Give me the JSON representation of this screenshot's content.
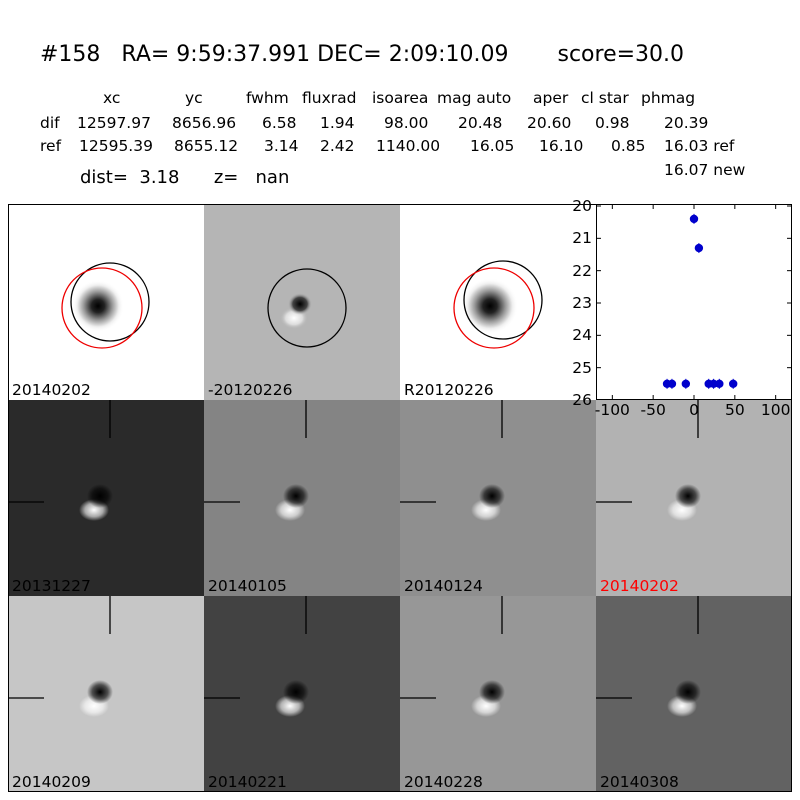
{
  "title": {
    "id": "#158",
    "ra": "RA= 9:59:37.991",
    "dec": "DEC= 2:09:10.09",
    "score": "score=30.0"
  },
  "table": {
    "headers": [
      "xc",
      "yc",
      "fwhm",
      "fluxrad",
      "isoarea",
      "mag auto",
      "aper",
      "cl star",
      "phmag"
    ],
    "rows": [
      {
        "label": "dif",
        "xc": "12597.97",
        "yc": "8656.96",
        "fwhm": "6.58",
        "fluxrad": "1.94",
        "isoarea": "98.00",
        "mag_auto": "20.48",
        "aper": "20.60",
        "cl_star": "0.98",
        "phmag": "20.39"
      },
      {
        "label": "ref",
        "xc": "12595.39",
        "yc": "8655.12",
        "fwhm": "3.14",
        "fluxrad": "2.42",
        "isoarea": "1140.00",
        "mag_auto": "16.05",
        "aper": "16.10",
        "cl_star": "0.85",
        "phmag": "16.03 ref"
      }
    ],
    "extra_phmag": "16.07 new"
  },
  "dist_line": {
    "dist": "dist=  3.18",
    "z": "z=   nan"
  },
  "stamps": {
    "top": [
      "20140202",
      "-20120226",
      "R20120226"
    ],
    "grid": [
      {
        "date": "20131227",
        "bg": "#2a2a2a",
        "highlight": false
      },
      {
        "date": "20140105",
        "bg": "#848484",
        "highlight": false
      },
      {
        "date": "20140124",
        "bg": "#8f8f8f",
        "highlight": false
      },
      {
        "date": "20140202",
        "bg": "#b2b2b2",
        "highlight": true
      },
      {
        "date": "20140209",
        "bg": "#c6c6c6",
        "highlight": false
      },
      {
        "date": "20140221",
        "bg": "#424242",
        "highlight": false
      },
      {
        "date": "20140228",
        "bg": "#979797",
        "highlight": false
      },
      {
        "date": "20140308",
        "bg": "#626262",
        "highlight": false
      }
    ],
    "highlight_color": "#ff0000"
  },
  "chart_data": {
    "type": "scatter",
    "title": "",
    "xlabel": "",
    "ylabel": "",
    "xlim": [
      -120,
      120
    ],
    "ylim": [
      26,
      20
    ],
    "y_inverted": true,
    "xticks": [
      "-100",
      "-50",
      "0",
      "50",
      "100"
    ],
    "yticks": [
      "20",
      "21",
      "22",
      "23",
      "24",
      "25",
      "26"
    ],
    "series": [
      {
        "color": "#0000cc",
        "points": [
          {
            "x": -33,
            "y": 25.5
          },
          {
            "x": -27,
            "y": 25.5
          },
          {
            "x": -10,
            "y": 25.5
          },
          {
            "x": 0,
            "y": 20.4
          },
          {
            "x": 6,
            "y": 21.3
          },
          {
            "x": 18,
            "y": 25.5
          },
          {
            "x": 24,
            "y": 25.5
          },
          {
            "x": 31,
            "y": 25.5
          },
          {
            "x": 48,
            "y": 25.5
          }
        ]
      }
    ]
  }
}
